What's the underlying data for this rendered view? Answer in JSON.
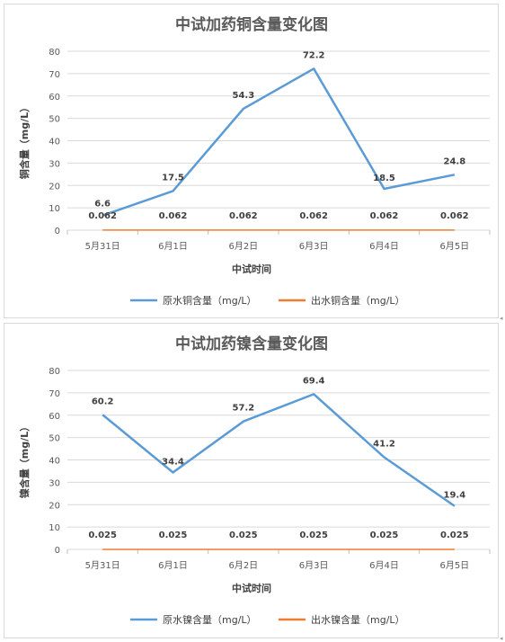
{
  "chart_data": [
    {
      "type": "line",
      "title": "中试加药铜含量变化图",
      "xlabel": "中试时间",
      "ylabel": "铜含量（mg/L）",
      "categories": [
        "5月31日",
        "6月1日",
        "6月2日",
        "6月3日",
        "6月4日",
        "6月5日"
      ],
      "ylim": [
        0,
        80
      ],
      "yticks": [
        0,
        10,
        20,
        30,
        40,
        50,
        60,
        70,
        80
      ],
      "grid": true,
      "legend_position": "bottom",
      "series": [
        {
          "name": "原水铜含量（mg/L）",
          "values": [
            6.6,
            17.5,
            54.3,
            72.2,
            18.5,
            24.8
          ],
          "labels": [
            "6.6",
            "17.5",
            "54.3",
            "72.2",
            "18.5",
            "24.8"
          ],
          "color": "#5b9bd5"
        },
        {
          "name": "出水铜含量（mg/L）",
          "values": [
            0.062,
            0.062,
            0.062,
            0.062,
            0.062,
            0.062
          ],
          "labels": [
            "0.062",
            "0.062",
            "0.062",
            "0.062",
            "0.062",
            "0.062"
          ],
          "color": "#ed7d31"
        }
      ]
    },
    {
      "type": "line",
      "title": "中试加药镍含量变化图",
      "xlabel": "中试时间",
      "ylabel": "镍含量（mg/L）",
      "categories": [
        "5月31日",
        "6月1日",
        "6月2日",
        "6月3日",
        "6月4日",
        "6月5日"
      ],
      "ylim": [
        0,
        80
      ],
      "yticks": [
        0,
        10,
        20,
        30,
        40,
        50,
        60,
        70,
        80
      ],
      "grid": true,
      "legend_position": "bottom",
      "series": [
        {
          "name": "原水镍含量（mg/L）",
          "values": [
            60.2,
            34.4,
            57.2,
            69.4,
            41.2,
            19.4
          ],
          "labels": [
            "60.2",
            "34.4",
            "57.2",
            "69.4",
            "41.2",
            "19.4"
          ],
          "color": "#5b9bd5"
        },
        {
          "name": "出水镍含量（mg/L）",
          "values": [
            0.025,
            0.025,
            0.025,
            0.025,
            0.025,
            0.025
          ],
          "labels": [
            "0.025",
            "0.025",
            "0.025",
            "0.025",
            "0.025",
            "0.025"
          ],
          "color": "#ed7d31"
        }
      ]
    }
  ]
}
